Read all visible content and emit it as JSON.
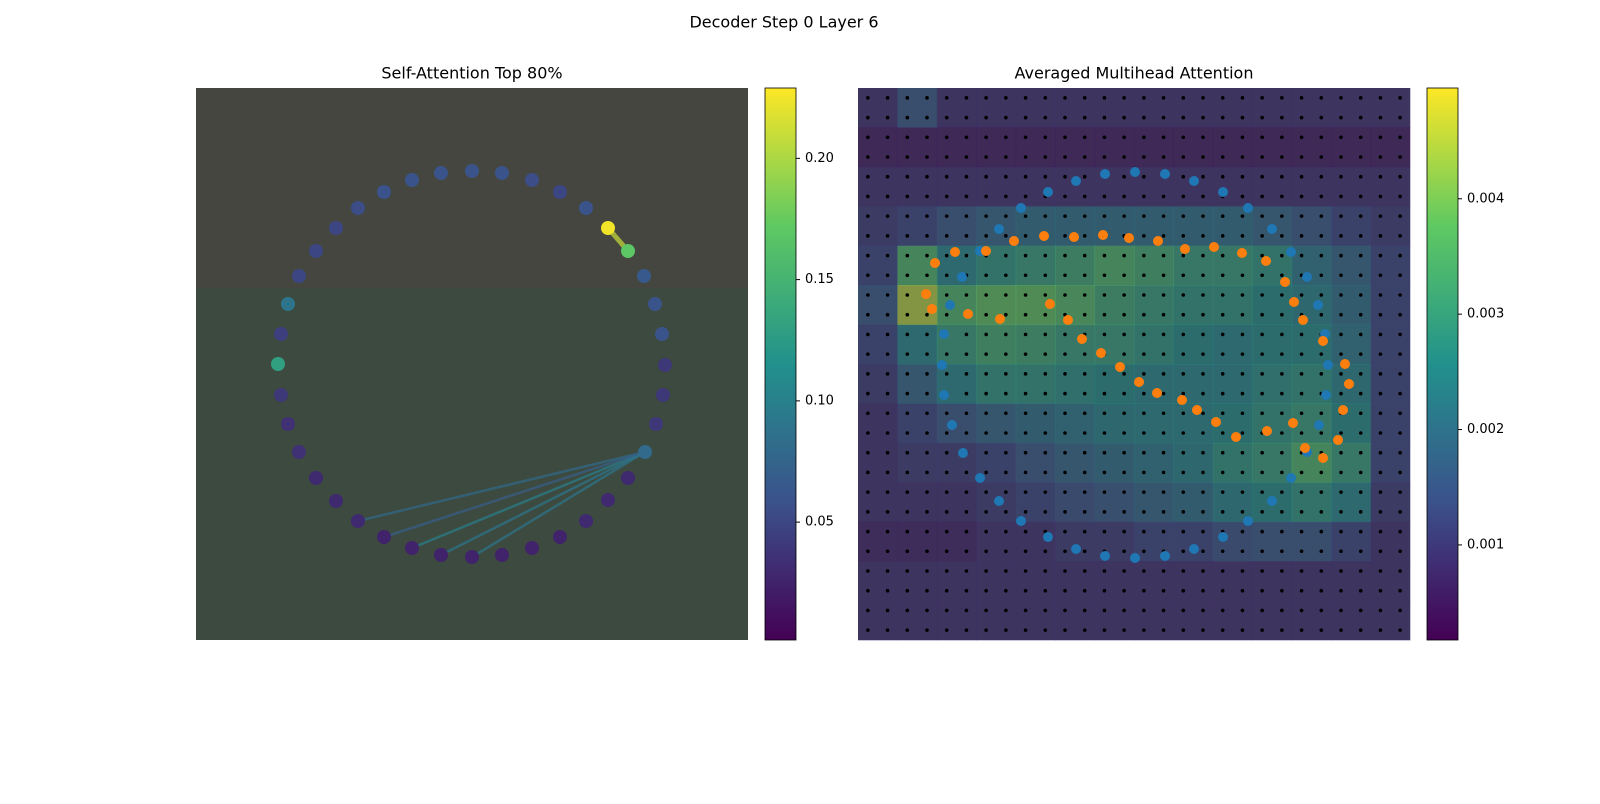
{
  "title": "Decoder Step 0 Layer 6",
  "chart_data": [
    {
      "type": "scatter",
      "title": "Self-Attention Top 80%",
      "cmap": "viridis",
      "xlim": [
        0,
        552
      ],
      "ylim": [
        552,
        0
      ],
      "x": [
        245,
        276,
        306,
        336,
        364,
        390,
        412,
        432,
        448,
        459,
        466,
        469,
        467,
        460,
        449,
        432,
        412,
        390,
        364,
        336,
        306,
        276,
        245,
        216,
        188,
        162,
        140,
        120,
        103,
        92,
        85,
        82,
        85,
        92,
        103,
        120,
        140,
        162,
        188,
        216
      ],
      "y": [
        85,
        83,
        85,
        92,
        104,
        120,
        140,
        163,
        188,
        216,
        246,
        277,
        307,
        336,
        364,
        390,
        412,
        433,
        449,
        460,
        467,
        469,
        467,
        460,
        449,
        433,
        413,
        390,
        364,
        336,
        307,
        276,
        246,
        216,
        188,
        163,
        140,
        120,
        104,
        92
      ],
      "values": [
        0.06,
        0.06,
        0.06,
        0.055,
        0.05,
        0.06,
        0.225,
        0.17,
        0.065,
        0.06,
        0.06,
        0.04,
        0.04,
        0.04,
        0.08,
        0.03,
        0.03,
        0.03,
        0.025,
        0.025,
        0.025,
        0.025,
        0.025,
        0.025,
        0.025,
        0.03,
        0.03,
        0.03,
        0.035,
        0.035,
        0.04,
        0.13,
        0.045,
        0.09,
        0.05,
        0.05,
        0.05,
        0.055,
        0.06,
        0.06
      ],
      "edges": {
        "from": [
          6,
          14,
          14,
          14,
          14,
          14
        ],
        "to": [
          7,
          23,
          22,
          25,
          24,
          21
        ],
        "values": [
          0.21,
          0.1,
          0.09,
          0.08,
          0.07,
          0.09
        ]
      },
      "clim": [
        0.0014,
        0.229
      ],
      "cticks": [
        0.05,
        {
          "value": 0.1,
          "label": "0.10"
        },
        0.15,
        {
          "value": 0.2,
          "label": "0.20"
        }
      ]
    },
    {
      "type": "heatmap",
      "title": "Averaged Multihead Attention",
      "cmap": "viridis",
      "xlim": [
        0,
        552
      ],
      "ylim": [
        552,
        0
      ],
      "heatmap": [
        [
          0.0008,
          0.0015,
          0.0008,
          0.0008,
          0.0008,
          0.0008,
          0.0008,
          0.0008,
          0.0008,
          0.0008,
          0.0008,
          0.0008,
          0.0008,
          0.0008
        ],
        [
          0.0005,
          0.0005,
          0.0005,
          0.0005,
          0.0005,
          0.0005,
          0.0005,
          0.0005,
          0.0005,
          0.0005,
          0.0005,
          0.0005,
          0.0005,
          0.0005
        ],
        [
          0.0008,
          0.0008,
          0.0008,
          0.0008,
          0.0008,
          0.0008,
          0.0008,
          0.0008,
          0.0008,
          0.0008,
          0.0008,
          0.0008,
          0.0008,
          0.0008
        ],
        [
          0.001,
          0.0012,
          0.0015,
          0.0018,
          0.002,
          0.002,
          0.002,
          0.002,
          0.002,
          0.002,
          0.0018,
          0.0015,
          0.0012,
          0.001
        ],
        [
          0.0012,
          0.0035,
          0.0025,
          0.0028,
          0.003,
          0.0032,
          0.0035,
          0.0033,
          0.003,
          0.003,
          0.0028,
          0.0022,
          0.0018,
          0.0012
        ],
        [
          0.0015,
          0.0045,
          0.0035,
          0.0038,
          0.0038,
          0.0036,
          0.0032,
          0.003,
          0.0028,
          0.0028,
          0.0026,
          0.0024,
          0.002,
          0.0012
        ],
        [
          0.0012,
          0.0025,
          0.003,
          0.0033,
          0.0032,
          0.003,
          0.003,
          0.0028,
          0.0026,
          0.0025,
          0.0026,
          0.0026,
          0.0022,
          0.0012
        ],
        [
          0.001,
          0.0018,
          0.0025,
          0.0028,
          0.0028,
          0.0027,
          0.0026,
          0.0025,
          0.0025,
          0.0025,
          0.0027,
          0.0028,
          0.0024,
          0.0012
        ],
        [
          0.0008,
          0.0012,
          0.0015,
          0.0018,
          0.002,
          0.0022,
          0.0024,
          0.0025,
          0.0025,
          0.0026,
          0.0028,
          0.003,
          0.0026,
          0.0012
        ],
        [
          0.0008,
          0.001,
          0.001,
          0.0012,
          0.0015,
          0.0018,
          0.002,
          0.0022,
          0.0024,
          0.0028,
          0.003,
          0.0035,
          0.003,
          0.0012
        ],
        [
          0.0008,
          0.0008,
          0.0008,
          0.001,
          0.0012,
          0.0014,
          0.0016,
          0.0018,
          0.002,
          0.0024,
          0.0026,
          0.0028,
          0.0025,
          0.001
        ],
        [
          0.0006,
          0.0006,
          0.0006,
          0.0008,
          0.0008,
          0.001,
          0.001,
          0.0012,
          0.0012,
          0.0014,
          0.0015,
          0.0015,
          0.0012,
          0.0008
        ],
        [
          0.0008,
          0.0008,
          0.0008,
          0.0008,
          0.0008,
          0.0008,
          0.0008,
          0.0008,
          0.0008,
          0.0008,
          0.0008,
          0.0008,
          0.0008,
          0.0008
        ],
        [
          0.0008,
          0.0008,
          0.0008,
          0.0008,
          0.0008,
          0.0008,
          0.0008,
          0.0008,
          0.0008,
          0.0008,
          0.0008,
          0.0008,
          0.0008,
          0.0008
        ]
      ],
      "clim": [
        0.000176,
        0.00496
      ],
      "cticks": [
        0.001,
        0.002,
        0.003,
        0.004
      ],
      "series": [
        {
          "color": "#1f77b4",
          "x": [
            190,
            218,
            247,
            277,
            307,
            336,
            365,
            390,
            414,
            433,
            449,
            460,
            467,
            470,
            468,
            461,
            449,
            433,
            414,
            390,
            365,
            336,
            307,
            277,
            247,
            218,
            190,
            163,
            141,
            122,
            105,
            94,
            86,
            84,
            86,
            92,
            104,
            122,
            141,
            163
          ],
          "y": [
            104,
            93,
            86,
            84,
            86,
            93,
            104,
            120,
            141,
            164,
            189,
            217,
            246,
            277,
            307,
            337,
            364,
            390,
            413,
            433,
            449,
            461,
            468,
            470,
            468,
            461,
            449,
            433,
            413,
            390,
            365,
            337,
            307,
            277,
            246,
            217,
            189,
            163,
            141,
            120
          ]
        },
        {
          "color": "#ff7f0e",
          "x": [
            77,
            97,
            128,
            156,
            186,
            216,
            245,
            271,
            300,
            327,
            356,
            384,
            408,
            427,
            436,
            445,
            465,
            487,
            491,
            485,
            480,
            465,
            447,
            435,
            409,
            378,
            358,
            339,
            324,
            299,
            281,
            262,
            243,
            224,
            210,
            192,
            142,
            110,
            74,
            68
          ],
          "y": [
            175,
            164,
            163,
            153,
            148,
            149,
            147,
            150,
            153,
            161,
            159,
            165,
            173,
            194,
            214,
            232,
            253,
            276,
            296,
            322,
            352,
            370,
            360,
            335,
            343,
            349,
            334,
            322,
            312,
            305,
            294,
            279,
            265,
            251,
            232,
            216,
            231,
            226,
            221,
            206
          ]
        }
      ]
    }
  ]
}
